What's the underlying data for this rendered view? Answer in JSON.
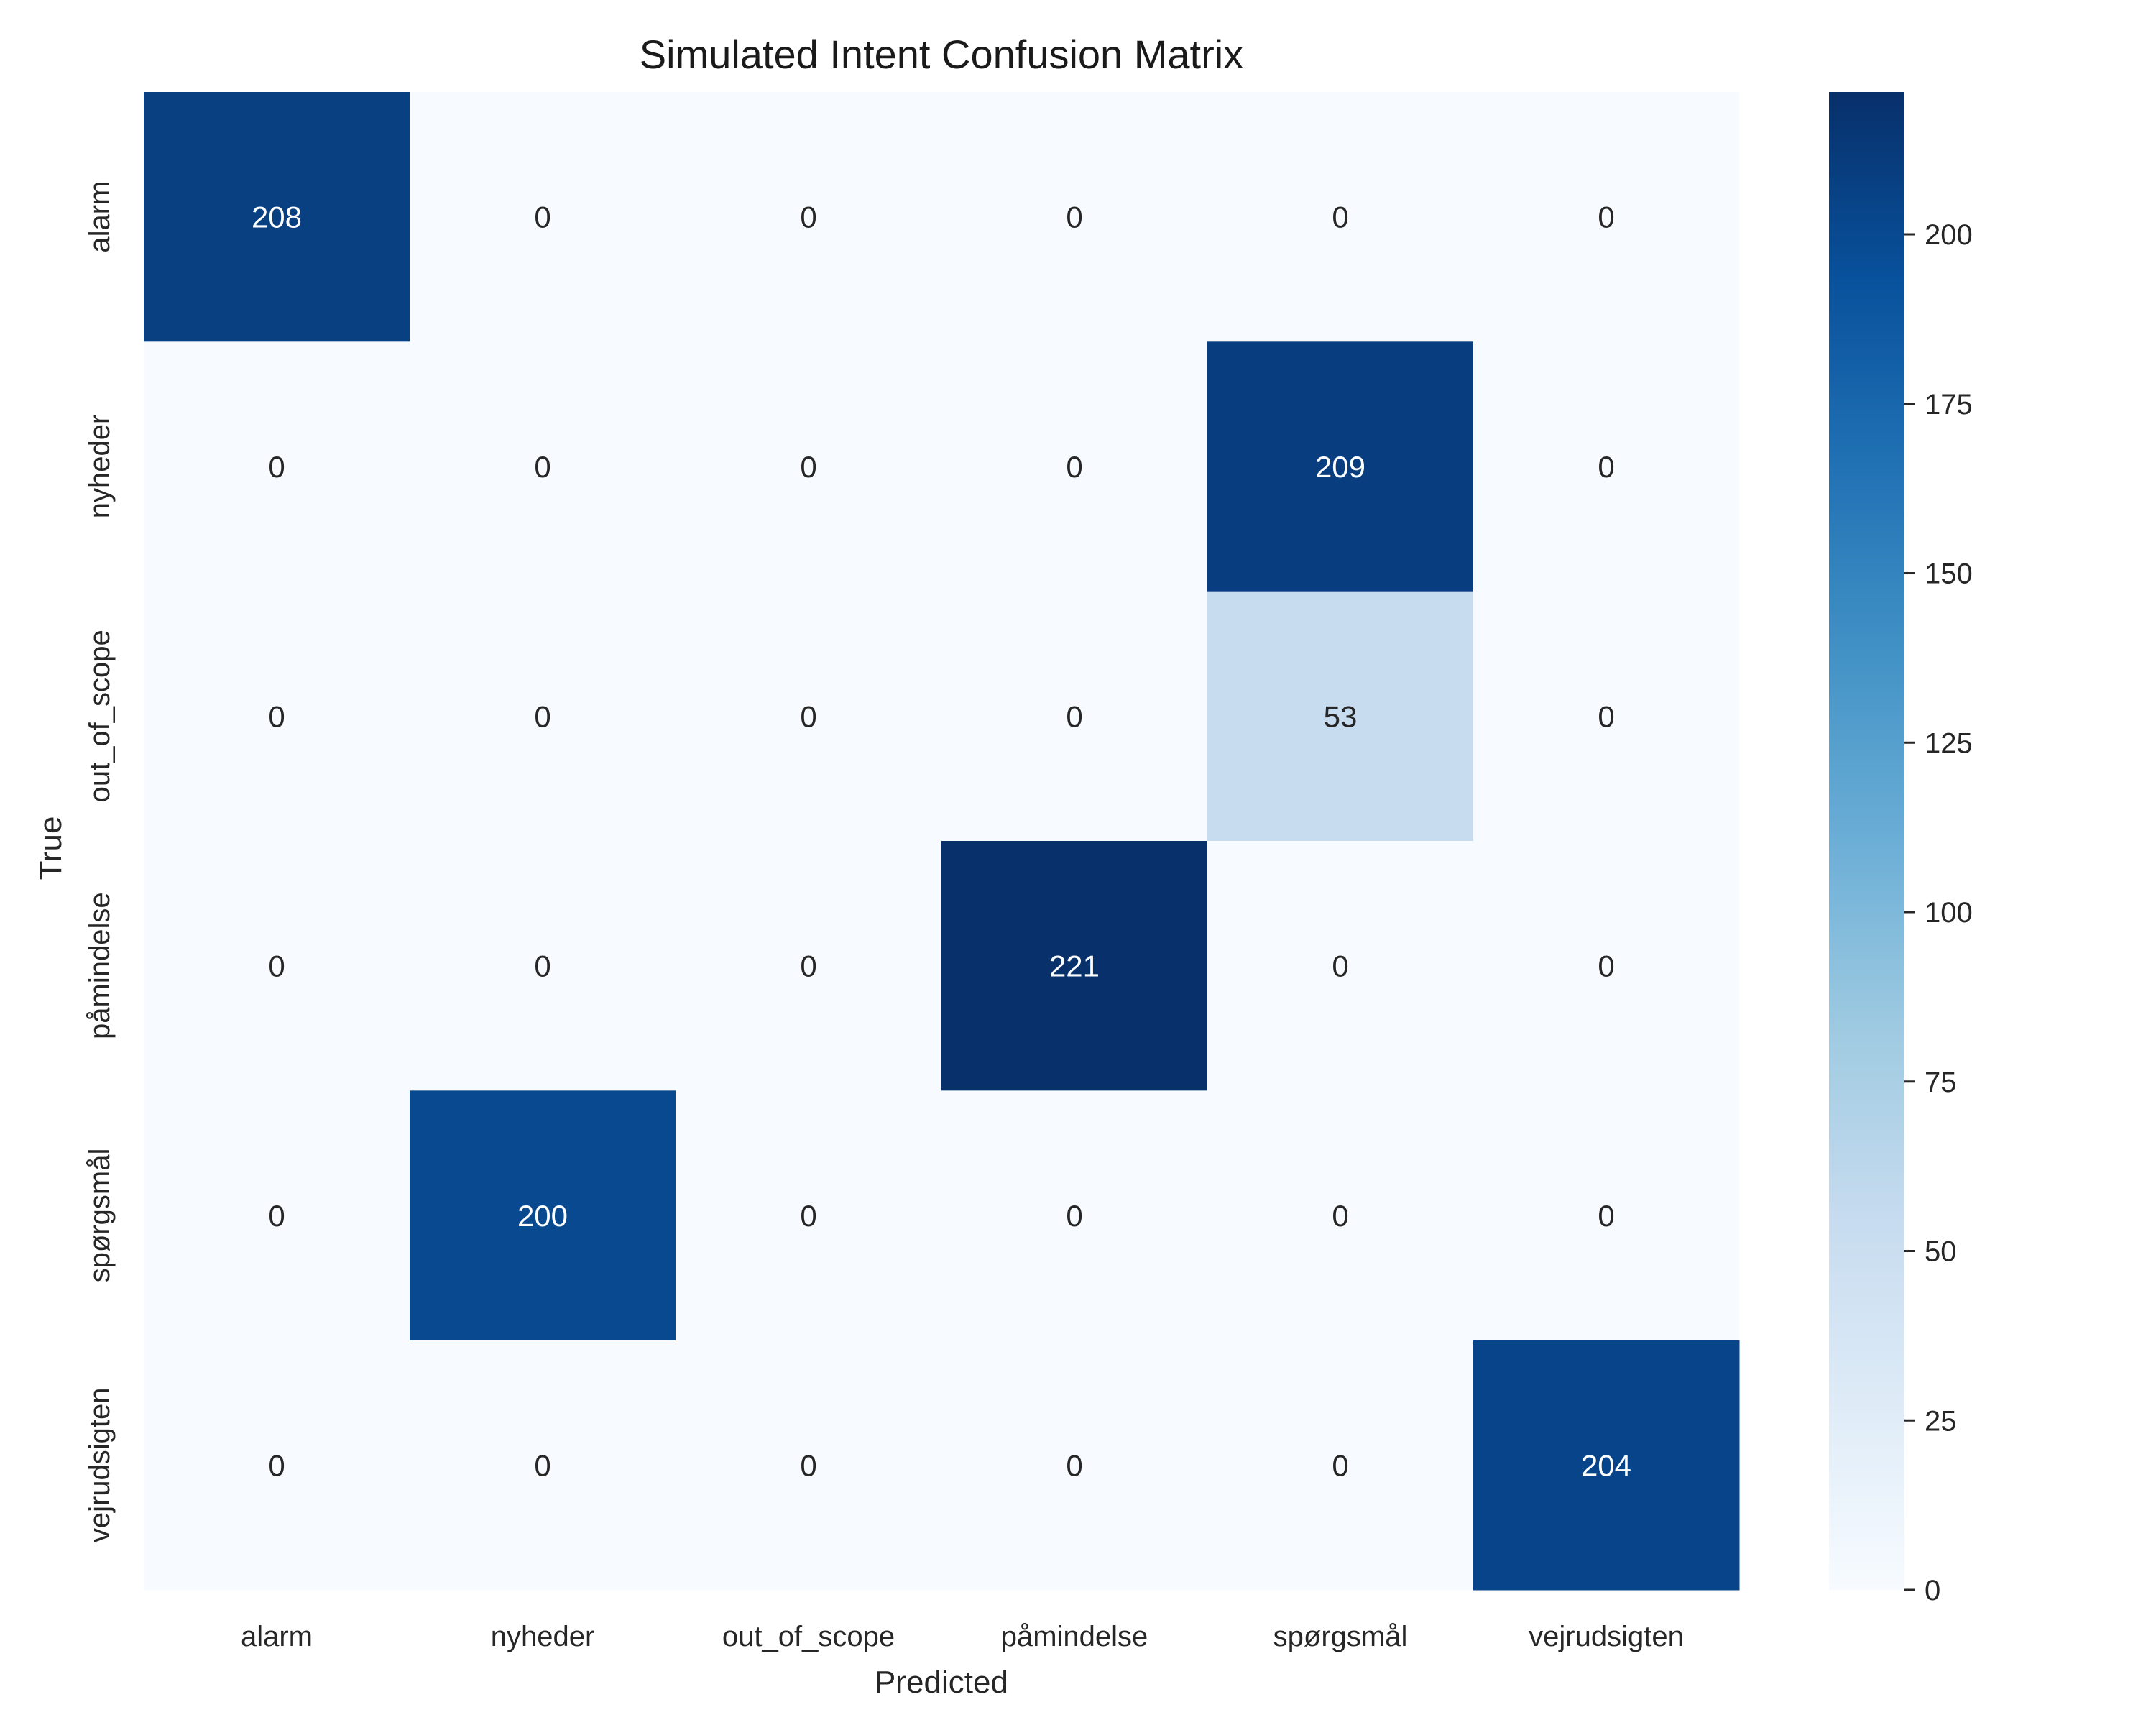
{
  "chart_data": {
    "type": "heatmap",
    "title": "Simulated Intent Confusion Matrix",
    "xlabel": "Predicted",
    "ylabel": "True",
    "x_categories": [
      "alarm",
      "nyheder",
      "out_of_scope",
      "påmindelse",
      "spørgsmål",
      "vejrudsigten"
    ],
    "y_categories": [
      "alarm",
      "nyheder",
      "out_of_scope",
      "påmindelse",
      "spørgsmål",
      "vejrudsigten"
    ],
    "values": [
      [
        208,
        0,
        0,
        0,
        0,
        0
      ],
      [
        0,
        0,
        0,
        0,
        209,
        0
      ],
      [
        0,
        0,
        0,
        0,
        53,
        0
      ],
      [
        0,
        0,
        0,
        221,
        0,
        0
      ],
      [
        0,
        200,
        0,
        0,
        0,
        0
      ],
      [
        0,
        0,
        0,
        0,
        0,
        204
      ]
    ],
    "colormap": "Blues",
    "colorbar": {
      "range": [
        0,
        221
      ],
      "ticks": [
        0,
        25,
        50,
        75,
        100,
        125,
        150,
        175,
        200
      ]
    },
    "annotated": true,
    "grid": false
  }
}
